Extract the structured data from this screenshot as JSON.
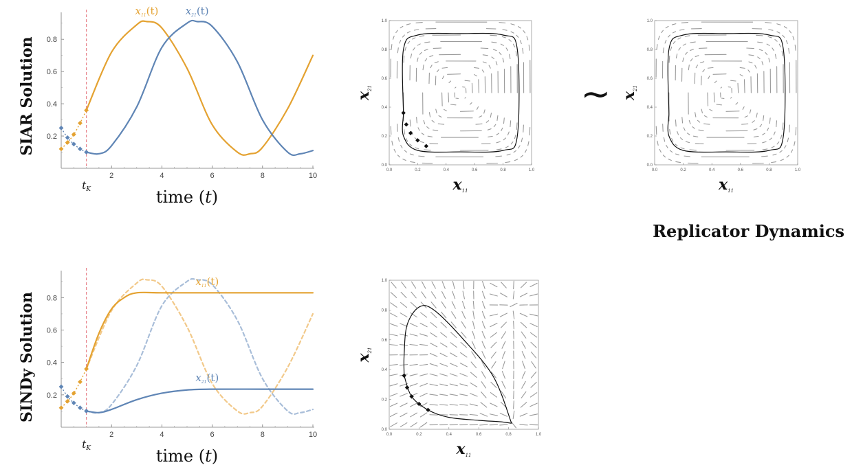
{
  "row_titles": {
    "top": "SIAR Solution",
    "bottom": "SINDy Solution"
  },
  "replicator_label": "Replicator Dynamics",
  "approx_symbol": "≀",
  "colors": {
    "orange": "#E4A231",
    "blue": "#5F85B5",
    "orange_light": "#F2C98A",
    "blue_light": "#A9BED9",
    "vline": "#E9878F"
  },
  "time_plot": {
    "xlabel_prefix": "time (",
    "xlabel_var": "t",
    "xlabel_suffix": ")",
    "tk_label": "t",
    "tk_sub": "K",
    "tk_value": 1,
    "x_ticks": [
      "2",
      "4",
      "6",
      "8",
      "10"
    ],
    "y_ticks": [
      "0.2",
      "0.4",
      "0.6",
      "0.8"
    ],
    "legend_orange": {
      "var": "x",
      "sub": "11",
      "arg": "(t)"
    },
    "legend_blue": {
      "var": "x",
      "sub": "21",
      "arg": "(t)"
    }
  },
  "phase_plot": {
    "xlabel_var": "x",
    "xlabel_sub": "11",
    "ylabel_var": "x",
    "ylabel_sub": "21",
    "ticks": [
      "0.0",
      "0.2",
      "0.4",
      "0.6",
      "0.8",
      "1.0"
    ]
  },
  "chart_data": [
    {
      "type": "line",
      "title": "SIAR Solution",
      "xlabel": "time (t)",
      "xlim": [
        0,
        10
      ],
      "ylim": [
        0,
        0.95
      ],
      "vline_tK": 1,
      "series": [
        {
          "name": "x11(t)",
          "color": "#E4A231",
          "style": "solid",
          "x": [
            1,
            2,
            3,
            3.4,
            4,
            5,
            6,
            7,
            7.5,
            8,
            9,
            10
          ],
          "y": [
            0.36,
            0.72,
            0.89,
            0.91,
            0.87,
            0.62,
            0.27,
            0.1,
            0.09,
            0.13,
            0.37,
            0.7
          ]
        },
        {
          "name": "x21(t)",
          "color": "#5F85B5",
          "style": "solid",
          "x": [
            1,
            1.5,
            2,
            3,
            4,
            5,
            5.4,
            6,
            7,
            8,
            9,
            9.5,
            10
          ],
          "y": [
            0.1,
            0.09,
            0.14,
            0.38,
            0.75,
            0.9,
            0.91,
            0.88,
            0.66,
            0.3,
            0.1,
            0.09,
            0.11
          ]
        }
      ],
      "markers": [
        {
          "color": "#E4A231",
          "x": [
            0,
            0.25,
            0.5,
            0.75,
            1
          ],
          "y": [
            0.12,
            0.16,
            0.21,
            0.28,
            0.36
          ]
        },
        {
          "color": "#5F85B5",
          "x": [
            0,
            0.25,
            0.5,
            0.75,
            1
          ],
          "y": [
            0.25,
            0.19,
            0.15,
            0.12,
            0.1
          ]
        }
      ]
    },
    {
      "type": "line",
      "title": "SINDy Solution",
      "xlabel": "time (t)",
      "xlim": [
        0,
        10
      ],
      "ylim": [
        0,
        0.95
      ],
      "vline_tK": 1,
      "series": [
        {
          "name": "x11(t)",
          "color": "#E4A231",
          "style": "solid",
          "x": [
            1,
            1.5,
            2,
            2.5,
            3,
            4,
            6,
            8,
            10
          ],
          "y": [
            0.36,
            0.58,
            0.73,
            0.8,
            0.83,
            0.83,
            0.83,
            0.83,
            0.83
          ]
        },
        {
          "name": "x21(t)",
          "color": "#5F85B5",
          "style": "solid",
          "x": [
            1,
            1.5,
            2,
            3,
            4,
            5,
            6,
            8,
            10
          ],
          "y": [
            0.1,
            0.09,
            0.11,
            0.17,
            0.21,
            0.23,
            0.235,
            0.235,
            0.235
          ]
        },
        {
          "color": "#F2C98A",
          "style": "dashed",
          "x": [
            1,
            2,
            3,
            3.4,
            4,
            5,
            6,
            7,
            7.5,
            8,
            9,
            10
          ],
          "y": [
            0.36,
            0.72,
            0.89,
            0.91,
            0.87,
            0.62,
            0.27,
            0.1,
            0.09,
            0.13,
            0.37,
            0.7
          ]
        },
        {
          "color": "#A9BED9",
          "style": "dashed",
          "x": [
            1,
            1.5,
            2,
            3,
            4,
            5,
            5.4,
            6,
            7,
            8,
            9,
            9.5,
            10
          ],
          "y": [
            0.1,
            0.09,
            0.14,
            0.38,
            0.75,
            0.9,
            0.91,
            0.88,
            0.66,
            0.3,
            0.1,
            0.09,
            0.11
          ]
        }
      ],
      "markers": [
        {
          "color": "#E4A231",
          "x": [
            0,
            0.25,
            0.5,
            0.75,
            1
          ],
          "y": [
            0.12,
            0.16,
            0.21,
            0.28,
            0.36
          ]
        },
        {
          "color": "#5F85B5",
          "x": [
            0,
            0.25,
            0.5,
            0.75,
            1
          ],
          "y": [
            0.25,
            0.19,
            0.15,
            0.12,
            0.1
          ]
        }
      ]
    },
    {
      "type": "scatter",
      "title": "",
      "xlabel": "x11",
      "ylabel": "x21",
      "xlim": [
        0,
        1
      ],
      "ylim": [
        0,
        1
      ],
      "field": "center",
      "trajectory": {
        "x": [
          0.1,
          0.1,
          0.2,
          0.5,
          0.8,
          0.9,
          0.9,
          0.8,
          0.5,
          0.2,
          0.1,
          0.1
        ],
        "y": [
          0.35,
          0.2,
          0.1,
          0.09,
          0.1,
          0.2,
          0.8,
          0.9,
          0.91,
          0.9,
          0.8,
          0.35
        ]
      },
      "markers": {
        "x": [
          0.1,
          0.12,
          0.15,
          0.2,
          0.26
        ],
        "y": [
          0.36,
          0.28,
          0.22,
          0.17,
          0.13
        ]
      }
    },
    {
      "type": "scatter",
      "title": "",
      "xlabel": "x11",
      "ylabel": "x21",
      "xlim": [
        0,
        1
      ],
      "ylim": [
        0,
        1
      ],
      "field": "center",
      "trajectory": {
        "x": [
          0.1,
          0.1,
          0.2,
          0.5,
          0.8,
          0.9,
          0.9,
          0.8,
          0.5,
          0.2,
          0.1,
          0.1
        ],
        "y": [
          0.35,
          0.2,
          0.1,
          0.09,
          0.1,
          0.2,
          0.8,
          0.9,
          0.91,
          0.9,
          0.8,
          0.35
        ]
      },
      "markers": {
        "x": [],
        "y": []
      }
    },
    {
      "type": "scatter",
      "title": "",
      "xlabel": "x11",
      "ylabel": "x21",
      "xlim": [
        0,
        1
      ],
      "ylim": [
        0,
        1
      ],
      "field": "node",
      "trajectory": {
        "x": [
          0.1,
          0.1,
          0.12,
          0.2,
          0.3,
          0.5,
          0.7,
          0.82
        ],
        "y": [
          0.36,
          0.5,
          0.7,
          0.82,
          0.8,
          0.6,
          0.35,
          0.04
        ]
      },
      "trajectory_back": {
        "x": [
          0.1,
          0.15,
          0.26,
          0.4,
          0.6,
          0.75,
          0.82
        ],
        "y": [
          0.36,
          0.22,
          0.13,
          0.08,
          0.06,
          0.05,
          0.04
        ]
      },
      "markers": {
        "x": [
          0.1,
          0.12,
          0.15,
          0.2,
          0.26
        ],
        "y": [
          0.36,
          0.28,
          0.22,
          0.17,
          0.13
        ]
      }
    }
  ]
}
